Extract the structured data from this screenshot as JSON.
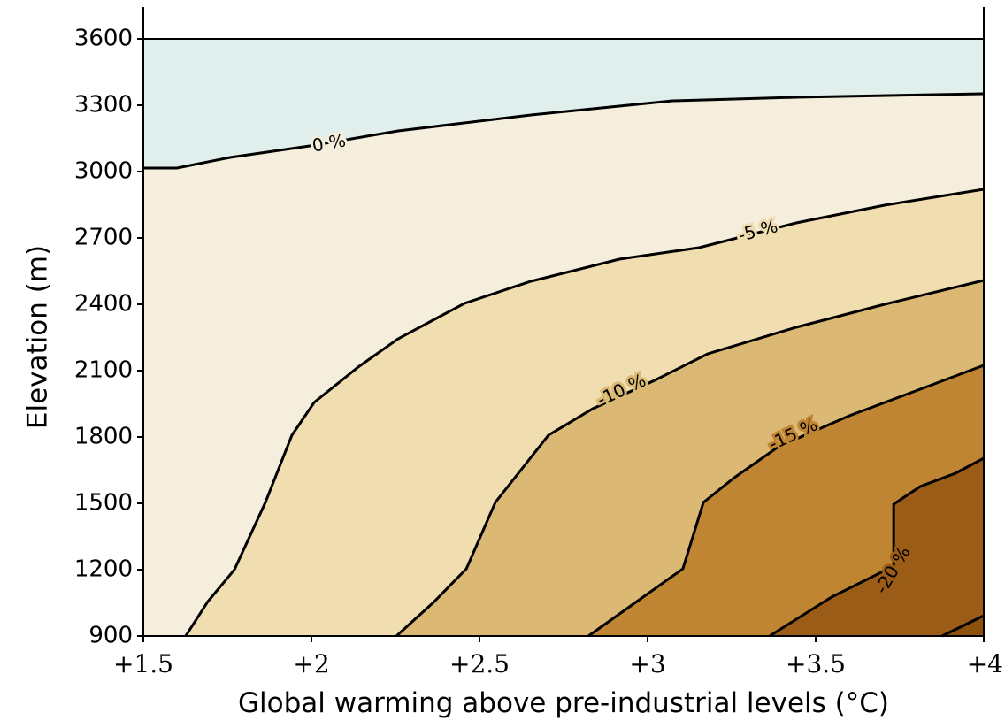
{
  "chart_data": {
    "type": "contour",
    "xlabel": "Global warming above pre-industrial levels (°C)",
    "ylabel": "Elevation (m)",
    "xlim": [
      1.5,
      4
    ],
    "ylim": [
      900,
      3600
    ],
    "xticks": [
      {
        "value": 1.5,
        "label": "+1.5"
      },
      {
        "value": 2,
        "label": "+2"
      },
      {
        "value": 2.5,
        "label": "+2.5"
      },
      {
        "value": 3,
        "label": "+3"
      },
      {
        "value": 3.5,
        "label": "+3.5"
      },
      {
        "value": 4,
        "label": "+4"
      }
    ],
    "yticks": [
      900,
      1200,
      1500,
      1800,
      2100,
      2400,
      2700,
      3000,
      3300,
      3600
    ],
    "band_colors": [
      "#e0efec",
      "#f5eedd",
      "#f0deb1",
      "#dbb975",
      "#c08532",
      "#9a5c17",
      "#8c510a"
    ],
    "line_color": "#000000",
    "contours": [
      {
        "level": 0,
        "label": "0 %",
        "x": [
          1.5,
          1.6,
          1.758,
          1.995,
          2.258,
          2.653,
          2.942,
          3.074,
          3.442,
          4.0
        ],
        "y": [
          3016,
          3016,
          3064,
          3116,
          3184,
          3256,
          3300,
          3320,
          3336,
          3352
        ]
      },
      {
        "level": -5,
        "label": "-5 %",
        "x": [
          1.626,
          1.692,
          1.771,
          1.863,
          1.942,
          2.008,
          2.139,
          2.258,
          2.455,
          2.653,
          2.916,
          3.153,
          3.442,
          3.705,
          4.0
        ],
        "y": [
          900,
          1056,
          1200,
          1504,
          1808,
          1956,
          2116,
          2244,
          2404,
          2504,
          2604,
          2656,
          2768,
          2848,
          2920
        ]
      },
      {
        "level": -10,
        "label": "-10 %",
        "x": [
          2.253,
          2.363,
          2.461,
          2.547,
          2.705,
          2.837,
          3.021,
          3.179,
          3.442,
          3.705,
          4.0
        ],
        "y": [
          900,
          1052,
          1204,
          1504,
          1808,
          1928,
          2056,
          2176,
          2296,
          2400,
          2508
        ]
      },
      {
        "level": -15,
        "label": "-15 %",
        "x": [
          2.824,
          2.968,
          3.105,
          3.166,
          3.258,
          3.389,
          3.6,
          3.811,
          4.0
        ],
        "y": [
          900,
          1056,
          1204,
          1504,
          1616,
          1756,
          1896,
          2016,
          2124
        ]
      },
      {
        "level": -20,
        "label": "-20 %",
        "x": [
          3.363,
          3.547,
          3.732,
          3.732,
          3.811,
          3.916,
          4.0
        ],
        "y": [
          900,
          1076,
          1216,
          1496,
          1576,
          1636,
          1704
        ]
      },
      {
        "level": -25,
        "x": [
          3.876,
          4.0
        ],
        "y": [
          900,
          992
        ]
      }
    ]
  }
}
